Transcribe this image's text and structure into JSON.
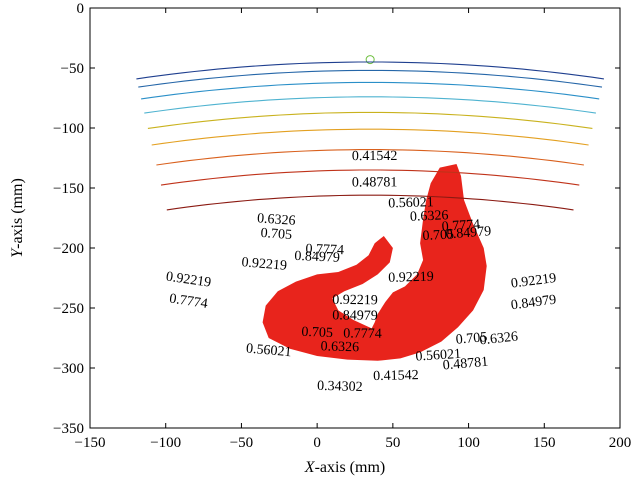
{
  "chart_data": {
    "type": "contour",
    "xlabel_var": "X",
    "xlabel_rest": "-axis (mm)",
    "ylabel_var": "Y",
    "ylabel_rest": "-axis (mm)",
    "xlim": [
      -150,
      200
    ],
    "ylim": [
      -350,
      0
    ],
    "xticks": [
      "−150",
      "−100",
      "−50",
      "0",
      "50",
      "100",
      "150",
      "200"
    ],
    "yticks": [
      "0",
      "−50",
      "−100",
      "−150",
      "−200",
      "−250",
      "−300",
      "−350"
    ],
    "fan": {
      "apex": [
        35,
        -43
      ],
      "pivot": [
        35,
        -900
      ],
      "inner_radius": 620,
      "outer_radius": 857,
      "half_angle_deg": 10.4
    },
    "grid_rings": 17,
    "grid_spokes": 24,
    "grid_color": "#6cbf3c",
    "region_color": "#e8241c",
    "contour_levels": [
      {
        "value": "0.34302",
        "color": "#1f3f8f",
        "radius": 855
      },
      {
        "value": "0.41542",
        "color": "#2566a8",
        "radius": 848
      },
      {
        "value": "0.48781",
        "color": "#2a8fc8",
        "radius": 838
      },
      {
        "value": "0.56021",
        "color": "#4fb3d0",
        "radius": 826
      },
      {
        "value": "0.6326",
        "color": "#c9b21e",
        "radius": 813
      },
      {
        "value": "0.705",
        "color": "#e3a021",
        "radius": 799
      },
      {
        "value": "0.7774",
        "color": "#d9601d",
        "radius": 782
      },
      {
        "value": "0.84979",
        "color": "#c0331a",
        "radius": 765
      },
      {
        "value": "0.92219",
        "color": "#8b1a12",
        "radius": 744
      }
    ],
    "contour_labels": [
      {
        "text": "0.41542",
        "x": 38,
        "y": -124
      },
      {
        "text": "0.48781",
        "x": 38,
        "y": -146
      },
      {
        "text": "0.56021",
        "x": 62,
        "y": -163
      },
      {
        "text": "0.6326",
        "x": 74,
        "y": -174
      },
      {
        "text": "0.6326",
        "x": -27,
        "y": -177
      },
      {
        "text": "0.705",
        "x": -27,
        "y": -189
      },
      {
        "text": "0.705",
        "x": 80,
        "y": -190
      },
      {
        "text": "0.7774",
        "x": 95,
        "y": -182
      },
      {
        "text": "0.84979",
        "x": 100,
        "y": -188
      },
      {
        "text": "0.7774",
        "x": 5,
        "y": -202
      },
      {
        "text": "0.84979",
        "x": 0,
        "y": -208
      },
      {
        "text": "0.92219",
        "x": -35,
        "y": -214
      },
      {
        "text": "0.92219",
        "x": -85,
        "y": -227
      },
      {
        "text": "0.7774",
        "x": -85,
        "y": -245
      },
      {
        "text": "0.92219",
        "x": 62,
        "y": -225
      },
      {
        "text": "0.92219",
        "x": 25,
        "y": -244
      },
      {
        "text": "0.84979",
        "x": 25,
        "y": -257
      },
      {
        "text": "0.705",
        "x": 0,
        "y": -271
      },
      {
        "text": "0.7774",
        "x": 30,
        "y": -272
      },
      {
        "text": "0.6326",
        "x": 15,
        "y": -283
      },
      {
        "text": "0.56021",
        "x": -32,
        "y": -286
      },
      {
        "text": "0.92219",
        "x": 143,
        "y": -228
      },
      {
        "text": "0.84979",
        "x": 143,
        "y": -246
      },
      {
        "text": "0.705",
        "x": 102,
        "y": -276
      },
      {
        "text": "0.6326",
        "x": 120,
        "y": -276
      },
      {
        "text": "0.56021",
        "x": 80,
        "y": -290
      },
      {
        "text": "0.48781",
        "x": 98,
        "y": -297
      },
      {
        "text": "0.41542",
        "x": 52,
        "y": -307
      },
      {
        "text": "0.34302",
        "x": 15,
        "y": -316
      }
    ]
  }
}
